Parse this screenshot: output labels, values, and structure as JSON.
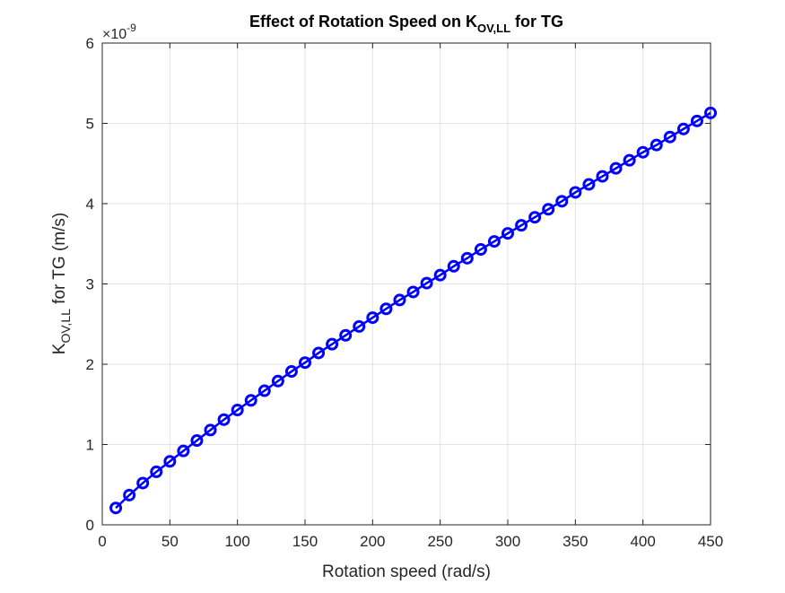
{
  "chart_data": {
    "type": "line",
    "title": {
      "prefix": "Effect of Rotation Speed on K",
      "subscript": "OV,LL",
      "suffix": " for TG"
    },
    "xlabel": "Rotation speed (rad/s)",
    "ylabel": {
      "prefix": "K",
      "subscript": "OV,LL",
      "suffix": " for TG (m/s)"
    },
    "y_exponent": {
      "base": "×10",
      "power": "-9"
    },
    "xlim": [
      0,
      450
    ],
    "ylim": [
      0,
      6
    ],
    "xticks": [
      0,
      50,
      100,
      150,
      200,
      250,
      300,
      350,
      400,
      450
    ],
    "yticks": [
      0,
      1,
      2,
      3,
      4,
      5,
      6
    ],
    "grid": true,
    "legend": "none",
    "marker": "circle",
    "line_color": "#0000ff",
    "series": [
      {
        "x": [
          10,
          20,
          30,
          40,
          50,
          60,
          70,
          80,
          90,
          100,
          110,
          120,
          130,
          140,
          150,
          160,
          170,
          180,
          190,
          200,
          210,
          220,
          230,
          240,
          250,
          260,
          270,
          280,
          290,
          300,
          310,
          320,
          330,
          340,
          350,
          360,
          370,
          380,
          390,
          400,
          410,
          420,
          430,
          440,
          450
        ],
        "y": [
          0.21,
          0.37,
          0.52,
          0.66,
          0.79,
          0.92,
          1.05,
          1.18,
          1.31,
          1.43,
          1.55,
          1.67,
          1.79,
          1.91,
          2.02,
          2.14,
          2.25,
          2.36,
          2.47,
          2.58,
          2.69,
          2.8,
          2.9,
          3.01,
          3.11,
          3.22,
          3.32,
          3.43,
          3.53,
          3.63,
          3.73,
          3.83,
          3.93,
          4.03,
          4.14,
          4.24,
          4.34,
          4.44,
          4.54,
          4.64,
          4.73,
          4.83,
          4.93,
          5.03,
          5.13
        ]
      }
    ]
  }
}
